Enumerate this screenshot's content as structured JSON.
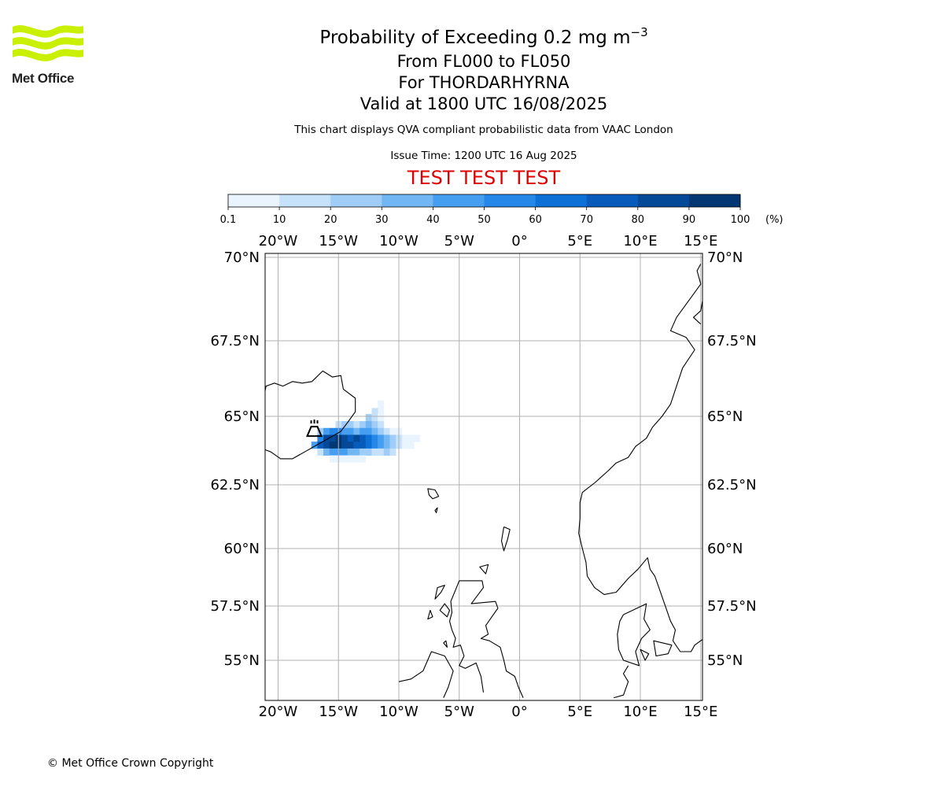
{
  "logo": {
    "text": "Met Office"
  },
  "title": {
    "main_prefix": "Probability of Exceeding 0.2 mg m",
    "main_exponent": "−3",
    "flight_levels": "From FL000 to FL050",
    "location": "For THORDARHYRNA",
    "valid_time": "Valid at 1800 UTC 16/08/2025"
  },
  "description": "This chart displays QVA compliant probabilistic data from VAAC London",
  "issue_time": "Issue Time: 1200 UTC 16 Aug 2025",
  "test_banner": "TEST TEST TEST",
  "copyright": "© Met Office Crown Copyright",
  "colorbar": {
    "ticks": [
      "0.1",
      "10",
      "20",
      "30",
      "40",
      "50",
      "60",
      "70",
      "80",
      "90",
      "100"
    ],
    "unit": "(%)",
    "colors": [
      "#eaf4ff",
      "#c6e2fb",
      "#9fcdf7",
      "#72b6f3",
      "#469ef0",
      "#2588e8",
      "#0d70d6",
      "#075cbb",
      "#044898",
      "#033774"
    ]
  },
  "map": {
    "lon_labels": [
      "20°W",
      "15°W",
      "10°W",
      "5°W",
      "0°",
      "5°E",
      "10°E",
      "15°E"
    ],
    "lon_values": [
      -20,
      -15,
      -10,
      -5,
      0,
      5,
      10,
      15
    ],
    "lat_labels": [
      "70°N",
      "67.5°N",
      "65°N",
      "62.5°N",
      "60°N",
      "57.5°N",
      "55°N"
    ],
    "lat_values": [
      70,
      67.5,
      65,
      62.5,
      60,
      57.5,
      55
    ],
    "volcano_name": "THORDARHYRNA",
    "volcano_icon": "volcano-icon",
    "ash_probability_cells": [
      {
        "lon": -11.5,
        "lat": 65.4,
        "p": 5
      },
      {
        "lon": -11.5,
        "lat": 65.15,
        "p": 5
      },
      {
        "lon": -12.0,
        "lat": 65.15,
        "p": 15
      },
      {
        "lon": -12.5,
        "lat": 64.95,
        "p": 25
      },
      {
        "lon": -12.0,
        "lat": 64.95,
        "p": 15
      },
      {
        "lon": -11.5,
        "lat": 64.95,
        "p": 5
      },
      {
        "lon": -15.0,
        "lat": 64.7,
        "p": 15
      },
      {
        "lon": -14.5,
        "lat": 64.7,
        "p": 25
      },
      {
        "lon": -14.0,
        "lat": 64.7,
        "p": 25
      },
      {
        "lon": -13.5,
        "lat": 64.7,
        "p": 15
      },
      {
        "lon": -13.0,
        "lat": 64.7,
        "p": 25
      },
      {
        "lon": -12.5,
        "lat": 64.7,
        "p": 35
      },
      {
        "lon": -12.0,
        "lat": 64.7,
        "p": 25
      },
      {
        "lon": -11.5,
        "lat": 64.7,
        "p": 15
      },
      {
        "lon": -16.5,
        "lat": 64.45,
        "p": 25
      },
      {
        "lon": -16.0,
        "lat": 64.45,
        "p": 45
      },
      {
        "lon": -15.5,
        "lat": 64.45,
        "p": 55
      },
      {
        "lon": -15.0,
        "lat": 64.45,
        "p": 55
      },
      {
        "lon": -14.5,
        "lat": 64.45,
        "p": 45
      },
      {
        "lon": -14.0,
        "lat": 64.45,
        "p": 45
      },
      {
        "lon": -13.5,
        "lat": 64.45,
        "p": 35
      },
      {
        "lon": -13.0,
        "lat": 64.45,
        "p": 45
      },
      {
        "lon": -12.5,
        "lat": 64.45,
        "p": 45
      },
      {
        "lon": -12.0,
        "lat": 64.45,
        "p": 35
      },
      {
        "lon": -11.5,
        "lat": 64.45,
        "p": 25
      },
      {
        "lon": -11.0,
        "lat": 64.45,
        "p": 15
      },
      {
        "lon": -10.5,
        "lat": 64.45,
        "p": 5
      },
      {
        "lon": -10.0,
        "lat": 64.45,
        "p": 5
      },
      {
        "lon": -16.5,
        "lat": 64.2,
        "p": 55
      },
      {
        "lon": -16.0,
        "lat": 64.2,
        "p": 85
      },
      {
        "lon": -15.5,
        "lat": 64.2,
        "p": 85
      },
      {
        "lon": -15.0,
        "lat": 64.2,
        "p": 95
      },
      {
        "lon": -14.5,
        "lat": 64.2,
        "p": 85
      },
      {
        "lon": -14.0,
        "lat": 64.2,
        "p": 75
      },
      {
        "lon": -13.5,
        "lat": 64.2,
        "p": 85
      },
      {
        "lon": -13.0,
        "lat": 64.2,
        "p": 75
      },
      {
        "lon": -12.5,
        "lat": 64.2,
        "p": 65
      },
      {
        "lon": -12.0,
        "lat": 64.2,
        "p": 55
      },
      {
        "lon": -11.5,
        "lat": 64.2,
        "p": 45
      },
      {
        "lon": -11.0,
        "lat": 64.2,
        "p": 35
      },
      {
        "lon": -10.5,
        "lat": 64.2,
        "p": 25
      },
      {
        "lon": -10.0,
        "lat": 64.2,
        "p": 15
      },
      {
        "lon": -9.5,
        "lat": 64.2,
        "p": 5
      },
      {
        "lon": -9.0,
        "lat": 64.2,
        "p": 5
      },
      {
        "lon": -8.5,
        "lat": 64.2,
        "p": 5
      },
      {
        "lon": -17.0,
        "lat": 63.95,
        "p": 45
      },
      {
        "lon": -16.5,
        "lat": 63.95,
        "p": 75
      },
      {
        "lon": -16.0,
        "lat": 63.95,
        "p": 85
      },
      {
        "lon": -15.5,
        "lat": 63.95,
        "p": 95
      },
      {
        "lon": -15.0,
        "lat": 63.95,
        "p": 95
      },
      {
        "lon": -14.5,
        "lat": 63.95,
        "p": 85
      },
      {
        "lon": -14.0,
        "lat": 63.95,
        "p": 85
      },
      {
        "lon": -13.5,
        "lat": 63.95,
        "p": 75
      },
      {
        "lon": -13.0,
        "lat": 63.95,
        "p": 75
      },
      {
        "lon": -12.5,
        "lat": 63.95,
        "p": 65
      },
      {
        "lon": -12.0,
        "lat": 63.95,
        "p": 55
      },
      {
        "lon": -11.5,
        "lat": 63.95,
        "p": 45
      },
      {
        "lon": -11.0,
        "lat": 63.95,
        "p": 35
      },
      {
        "lon": -10.5,
        "lat": 63.95,
        "p": 25
      },
      {
        "lon": -10.0,
        "lat": 63.95,
        "p": 15
      },
      {
        "lon": -9.5,
        "lat": 63.95,
        "p": 5
      },
      {
        "lon": -9.0,
        "lat": 63.95,
        "p": 5
      },
      {
        "lon": -16.5,
        "lat": 63.7,
        "p": 15
      },
      {
        "lon": -16.0,
        "lat": 63.7,
        "p": 35
      },
      {
        "lon": -15.5,
        "lat": 63.7,
        "p": 45
      },
      {
        "lon": -15.0,
        "lat": 63.7,
        "p": 45
      },
      {
        "lon": -14.5,
        "lat": 63.7,
        "p": 45
      },
      {
        "lon": -14.0,
        "lat": 63.7,
        "p": 35
      },
      {
        "lon": -13.5,
        "lat": 63.7,
        "p": 35
      },
      {
        "lon": -13.0,
        "lat": 63.7,
        "p": 25
      },
      {
        "lon": -12.5,
        "lat": 63.7,
        "p": 25
      },
      {
        "lon": -12.0,
        "lat": 63.7,
        "p": 15
      },
      {
        "lon": -11.5,
        "lat": 63.7,
        "p": 15
      },
      {
        "lon": -11.0,
        "lat": 63.7,
        "p": 25
      },
      {
        "lon": -10.5,
        "lat": 63.7,
        "p": 15
      },
      {
        "lon": -15.5,
        "lat": 63.45,
        "p": 5
      },
      {
        "lon": -15.0,
        "lat": 63.45,
        "p": 5
      },
      {
        "lon": -14.5,
        "lat": 63.45,
        "p": 5
      },
      {
        "lon": -14.0,
        "lat": 63.45,
        "p": 5
      },
      {
        "lon": -13.5,
        "lat": 63.45,
        "p": 5
      },
      {
        "lon": -13.0,
        "lat": 63.45,
        "p": 5
      }
    ]
  }
}
